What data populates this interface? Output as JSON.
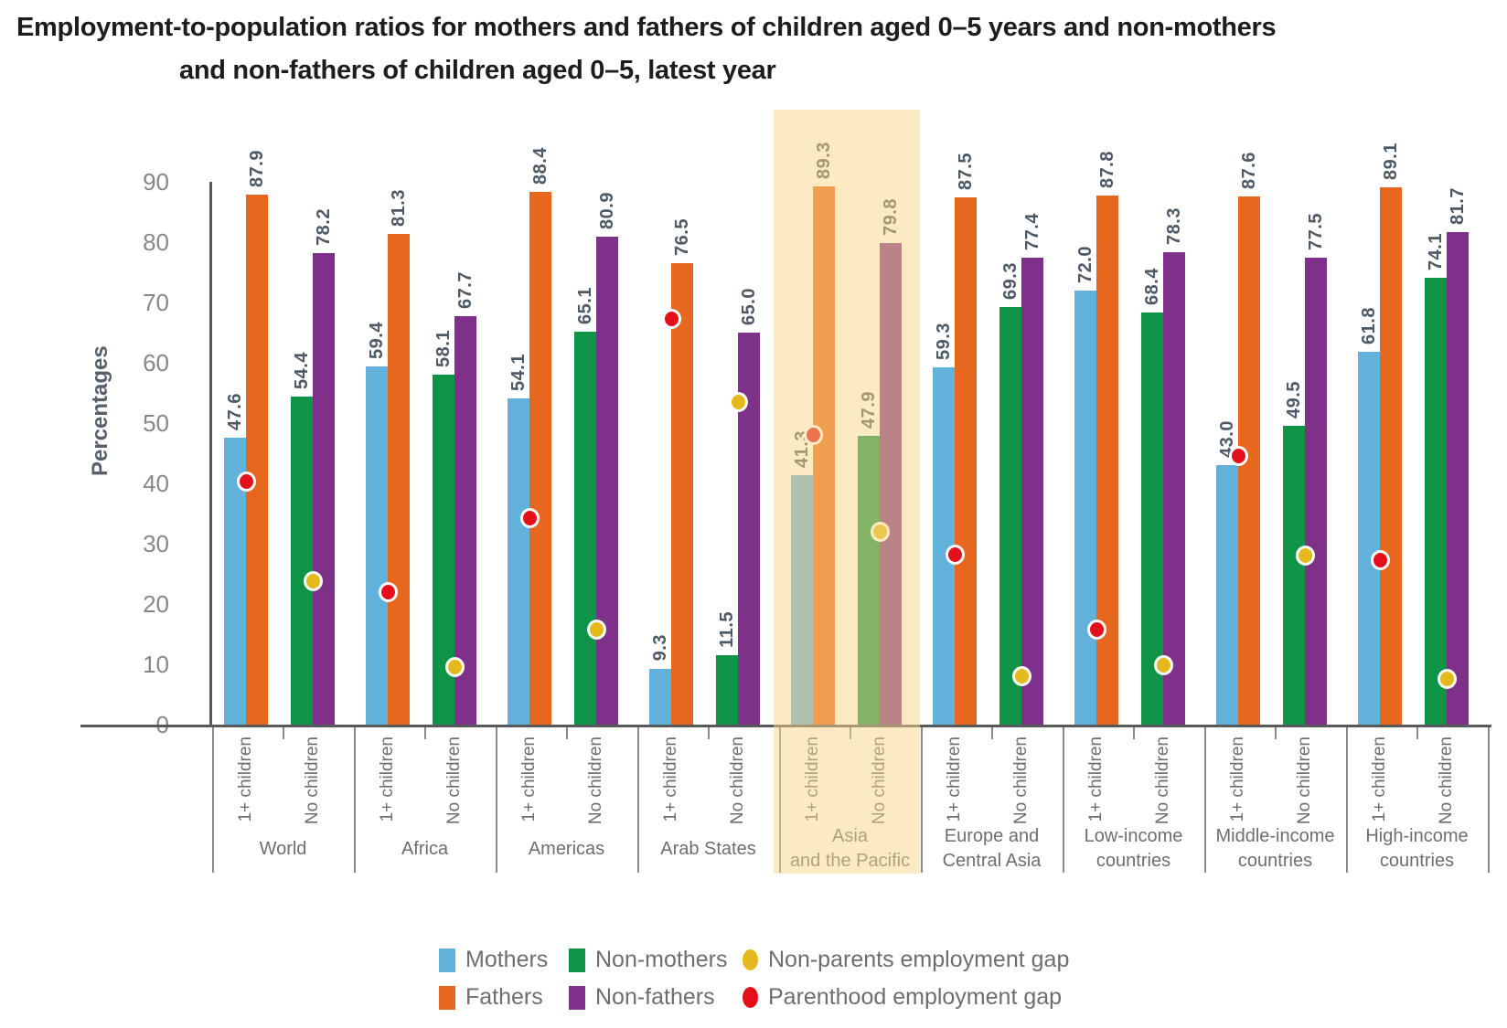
{
  "title": {
    "line1": "Employment-to-population ratios for mothers and fathers of children aged 0–5 years and non-mothers",
    "line2": "and non-fathers of children aged 0–5, latest year"
  },
  "chart_data": {
    "type": "bar",
    "title": "Employment-to-population ratios for mothers and fathers of children aged 0–5 years and non-mothers and non-fathers of children aged 0–5, latest year",
    "ylabel": "Percentages",
    "ylim": [
      0,
      90
    ],
    "yticks": [
      0,
      10,
      20,
      30,
      40,
      50,
      60,
      70,
      80,
      90
    ],
    "grid": false,
    "legend_position": "bottom",
    "sub_categories": [
      "1+ children",
      "No children"
    ],
    "series_colors": {
      "mothers": "#62b1db",
      "fathers": "#e8671f",
      "non_mothers": "#0e9347",
      "non_fathers": "#7d3189",
      "parenthood_gap": "#e3101c",
      "non_parents_gap": "#e5b91c"
    },
    "highlight_color": "rgba(247,214,134,0.5)",
    "groups": [
      {
        "label_lines": [
          "World"
        ],
        "highlighted": false,
        "mothers": "47.6",
        "fathers": "87.9",
        "non_mothers": "54.4",
        "non_fathers": "78.2",
        "parenthood_gap": 40.3,
        "non_parents_gap": 23.8
      },
      {
        "label_lines": [
          "Africa"
        ],
        "highlighted": false,
        "mothers": "59.4",
        "fathers": "81.3",
        "non_mothers": "58.1",
        "non_fathers": "67.7",
        "parenthood_gap": 21.9,
        "non_parents_gap": 9.6
      },
      {
        "label_lines": [
          "Americas"
        ],
        "highlighted": false,
        "mothers": "54.1",
        "fathers": "88.4",
        "non_mothers": "65.1",
        "non_fathers": "80.9",
        "parenthood_gap": 34.3,
        "non_parents_gap": 15.8
      },
      {
        "label_lines": [
          "Arab States"
        ],
        "highlighted": false,
        "mothers": "9.3",
        "fathers": "76.5",
        "non_mothers": "11.5",
        "non_fathers": "65.0",
        "parenthood_gap": 67.2,
        "non_parents_gap": 53.5
      },
      {
        "label_lines": [
          "Asia",
          "and the Pacific"
        ],
        "highlighted": true,
        "mothers": "41.3",
        "fathers": "89.3",
        "non_mothers": "47.9",
        "non_fathers": "79.8",
        "parenthood_gap": 48.0,
        "non_parents_gap": 31.9
      },
      {
        "label_lines": [
          "Europe and",
          "Central Asia"
        ],
        "highlighted": false,
        "mothers": "59.3",
        "fathers": "87.5",
        "non_mothers": "69.3",
        "non_fathers": "77.4",
        "parenthood_gap": 28.2,
        "non_parents_gap": 8.1
      },
      {
        "label_lines": [
          "Low-income",
          "countries"
        ],
        "highlighted": false,
        "mothers": "72.0",
        "fathers": "87.8",
        "non_mothers": "68.4",
        "non_fathers": "78.3",
        "parenthood_gap": 15.8,
        "non_parents_gap": 9.9
      },
      {
        "label_lines": [
          "Middle-income",
          "countries"
        ],
        "highlighted": false,
        "mothers": "43.0",
        "fathers": "87.6",
        "non_mothers": "49.5",
        "non_fathers": "77.5",
        "parenthood_gap": 44.6,
        "non_parents_gap": 28.0
      },
      {
        "label_lines": [
          "High-income",
          "countries"
        ],
        "highlighted": false,
        "mothers": "61.8",
        "fathers": "89.1",
        "non_mothers": "74.1",
        "non_fathers": "81.7",
        "parenthood_gap": 27.3,
        "non_parents_gap": 7.6
      }
    ],
    "legend": {
      "rows": [
        [
          {
            "marker": "rect",
            "color_key": "mothers",
            "label": "Mothers"
          },
          {
            "marker": "rect",
            "color_key": "non_mothers",
            "label": "Non-mothers"
          },
          {
            "marker": "dot",
            "color_key": "non_parents_gap",
            "label": "Non-parents employment gap"
          }
        ],
        [
          {
            "marker": "rect",
            "color_key": "fathers",
            "label": "Fathers"
          },
          {
            "marker": "rect",
            "color_key": "non_fathers",
            "label": "Non-fathers"
          },
          {
            "marker": "dot",
            "color_key": "parenthood_gap",
            "label": "Parenthood employment gap"
          }
        ]
      ]
    }
  }
}
